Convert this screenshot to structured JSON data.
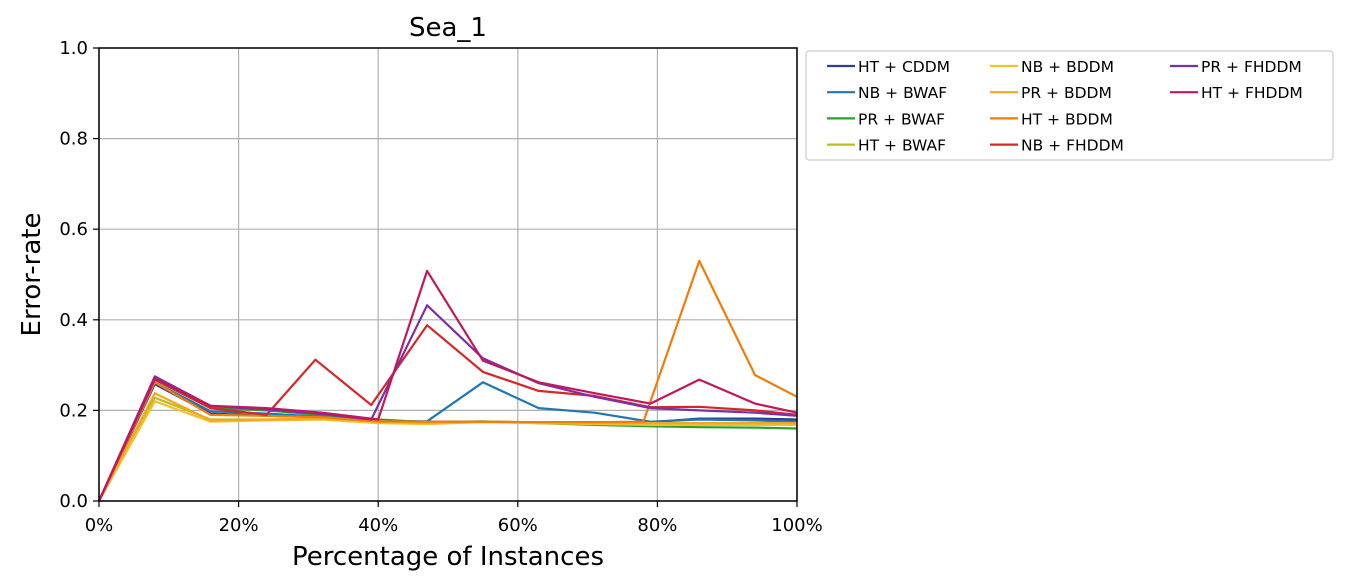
{
  "chart_data": {
    "type": "line",
    "title": "Sea_1",
    "xlabel": "Percentage of Instances",
    "ylabel": "Error-rate",
    "xlim": [
      0,
      100
    ],
    "ylim": [
      0,
      1.0
    ],
    "x_ticks": [
      0,
      20,
      40,
      60,
      80,
      100
    ],
    "x_tick_labels": [
      "0%",
      "20%",
      "40%",
      "60%",
      "80%",
      "100%"
    ],
    "y_ticks": [
      0,
      0.2,
      0.4,
      0.6,
      0.8,
      1.0
    ],
    "y_tick_labels": [
      "0.0",
      "0.2",
      "0.4",
      "0.6",
      "0.8",
      "1.0"
    ],
    "grid": true,
    "legend_position": "outside-top-right",
    "legend_columns": 3,
    "series": [
      {
        "name": "HT + CDDM",
        "color": "#2e3f8f",
        "x": [
          0,
          8,
          16,
          24,
          32,
          40,
          47,
          55,
          63,
          71,
          79,
          86,
          94,
          100
        ],
        "y": [
          0,
          0.258,
          0.193,
          0.188,
          0.185,
          0.178,
          0.175,
          0.175,
          0.174,
          0.174,
          0.174,
          0.182,
          0.182,
          0.18
        ]
      },
      {
        "name": "NB + BWAF",
        "color": "#1f77b4",
        "x": [
          0,
          8,
          16,
          24,
          32,
          40,
          47,
          55,
          63,
          71,
          79,
          86,
          94,
          100
        ],
        "y": [
          0,
          0.262,
          0.198,
          0.193,
          0.186,
          0.176,
          0.176,
          0.262,
          0.205,
          0.195,
          0.175,
          0.18,
          0.178,
          0.175
        ]
      },
      {
        "name": "PR + BWAF",
        "color": "#2ca02c",
        "x": [
          0,
          8,
          16,
          24,
          32,
          40,
          47,
          55,
          63,
          71,
          79,
          86,
          94,
          100
        ],
        "y": [
          0,
          0.268,
          0.205,
          0.2,
          0.19,
          0.18,
          0.174,
          0.176,
          0.172,
          0.168,
          0.165,
          0.163,
          0.162,
          0.16
        ]
      },
      {
        "name": "HT + BWAF",
        "color": "#bcbd22",
        "x": [
          0,
          8,
          16,
          24,
          32,
          40,
          47,
          55,
          63,
          71,
          79,
          86,
          94,
          100
        ],
        "y": [
          0,
          0.228,
          0.18,
          0.18,
          0.182,
          0.176,
          0.172,
          0.174,
          0.174,
          0.172,
          0.17,
          0.17,
          0.17,
          0.17
        ]
      },
      {
        "name": "NB + BDDM",
        "color": "#f2c12e",
        "x": [
          0,
          8,
          16,
          24,
          32,
          40,
          47,
          55,
          63,
          71,
          79,
          86,
          94,
          100
        ],
        "y": [
          0,
          0.22,
          0.175,
          0.178,
          0.18,
          0.172,
          0.17,
          0.174,
          0.172,
          0.17,
          0.168,
          0.168,
          0.168,
          0.168
        ]
      },
      {
        "name": "PR + BDDM",
        "color": "#f5a623",
        "x": [
          0,
          8,
          16,
          24,
          32,
          40,
          47,
          55,
          63,
          71,
          79,
          86,
          94,
          100
        ],
        "y": [
          0,
          0.238,
          0.178,
          0.18,
          0.182,
          0.175,
          0.173,
          0.175,
          0.174,
          0.173,
          0.172,
          0.172,
          0.172,
          0.172
        ]
      },
      {
        "name": "HT + BDDM",
        "color": "#f07d0a",
        "x": [
          0,
          8,
          16,
          24,
          32,
          40,
          47,
          55,
          63,
          71,
          78,
          86,
          94,
          100
        ],
        "y": [
          0,
          0.262,
          0.19,
          0.188,
          0.185,
          0.176,
          0.175,
          0.175,
          0.174,
          0.174,
          0.175,
          0.53,
          0.278,
          0.23
        ]
      },
      {
        "name": "NB + FHDDM",
        "color": "#d62728",
        "x": [
          0,
          8,
          16,
          24,
          31,
          39,
          47,
          55,
          63,
          71,
          79,
          86,
          94,
          100
        ],
        "y": [
          0,
          0.268,
          0.205,
          0.19,
          0.312,
          0.212,
          0.388,
          0.285,
          0.243,
          0.232,
          0.207,
          0.208,
          0.2,
          0.19
        ]
      },
      {
        "name": "PR + FHDDM",
        "color": "#7b2fa8",
        "x": [
          0,
          8,
          16,
          24,
          32,
          39,
          47,
          55,
          63,
          71,
          79,
          86,
          94,
          100
        ],
        "y": [
          0,
          0.275,
          0.21,
          0.202,
          0.192,
          0.18,
          0.432,
          0.315,
          0.26,
          0.23,
          0.205,
          0.2,
          0.195,
          0.188
        ]
      },
      {
        "name": "HT + FHDDM",
        "color": "#c2185b",
        "x": [
          0,
          8,
          16,
          24,
          32,
          40,
          47,
          55,
          63,
          71,
          79,
          86,
          94,
          100
        ],
        "y": [
          0,
          0.27,
          0.21,
          0.205,
          0.195,
          0.18,
          0.508,
          0.31,
          0.262,
          0.238,
          0.215,
          0.268,
          0.215,
          0.195
        ]
      }
    ]
  }
}
